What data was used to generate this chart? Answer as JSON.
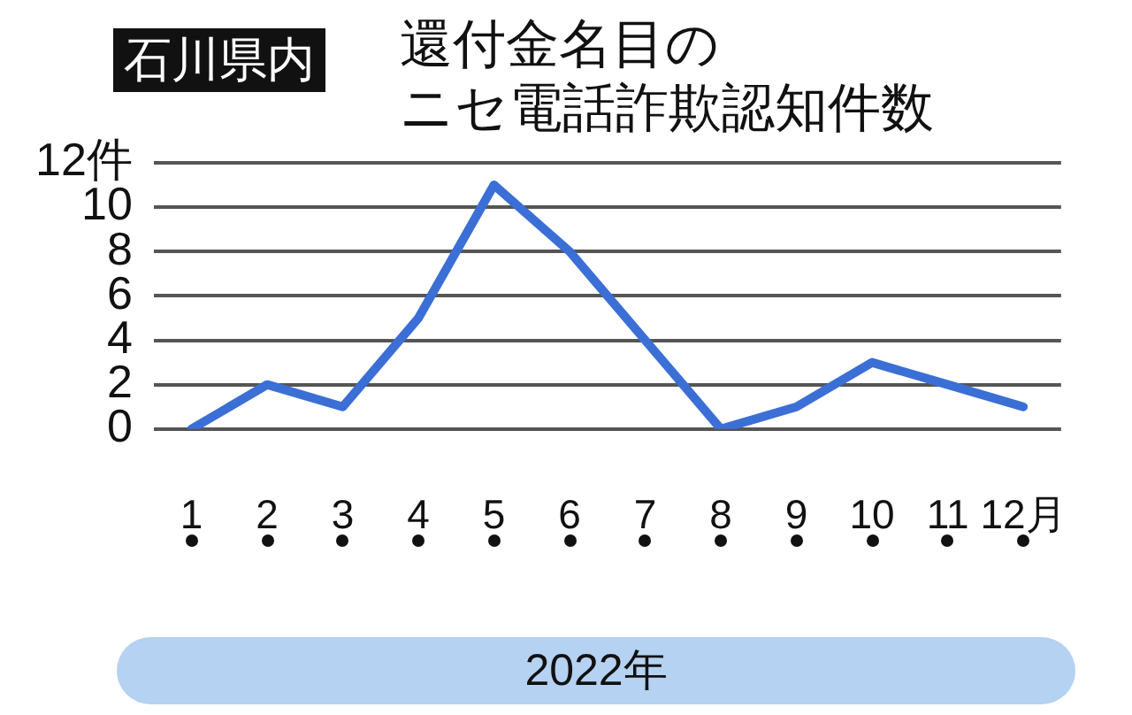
{
  "chart_data": {
    "type": "line",
    "subtitle": "石川県内",
    "title": "還付金名目のニセ電話詐欺認知件数",
    "xlabel": "2022年",
    "categories": [
      "1",
      "2",
      "3",
      "4",
      "5",
      "6",
      "7",
      "8",
      "9",
      "10",
      "11",
      "12月"
    ],
    "series": [
      {
        "color": "#3b6fd6",
        "values": [
          0,
          2,
          1,
          5,
          11,
          8,
          4,
          0,
          1,
          3,
          2,
          1
        ]
      }
    ],
    "ylim": [
      0,
      12
    ],
    "yticks": [
      0,
      2,
      4,
      6,
      8,
      10,
      {
        "value": 12,
        "label": "12件"
      }
    ],
    "grid": "y",
    "legend": false,
    "marker": "none",
    "line_style": "solid"
  }
}
